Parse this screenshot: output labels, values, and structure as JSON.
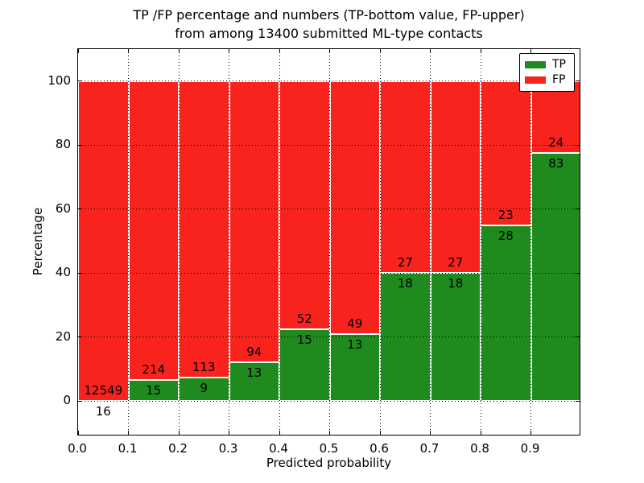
{
  "chart_data": {
    "type": "bar",
    "variant": "stacked-percentage-histogram",
    "title_lines": [
      "TP /FP percentage and numbers (TP-bottom value, FP-upper)",
      "from among 13400 submitted ML-type contacts"
    ],
    "total_contacts_shown_in_title": "13400",
    "xlabel": "Predicted probability",
    "ylabel": "Percentage",
    "x_tick_labels": [
      "0.0",
      "0.1",
      "0.2",
      "0.3",
      "0.4",
      "0.5",
      "0.6",
      "0.7",
      "0.8",
      "0.9"
    ],
    "y_tick_labels": [
      "0",
      "20",
      "40",
      "60",
      "80",
      "100"
    ],
    "y_tick_values": [
      0,
      20,
      40,
      60,
      80,
      100
    ],
    "xlim": [
      0,
      1
    ],
    "ylim": [
      -11,
      110
    ],
    "bin_width": 0.1,
    "grid": "dotted black, horizontal and vertical at ticks",
    "bar_edge_color": "#ffffff",
    "series": [
      {
        "name": "TP",
        "position": "bottom",
        "color": "#1f8b1f",
        "counts": [
          16,
          15,
          9,
          13,
          15,
          13,
          18,
          18,
          28,
          83
        ]
      },
      {
        "name": "FP",
        "position": "top",
        "color": "#f9231d",
        "counts": [
          12549,
          214,
          113,
          94,
          52,
          49,
          27,
          27,
          23,
          24
        ]
      }
    ],
    "legend": {
      "position": "upper-right",
      "entries": [
        {
          "label": "TP",
          "color": "#1f8b1f"
        },
        {
          "label": "FP",
          "color": "#f9231d"
        }
      ]
    }
  }
}
